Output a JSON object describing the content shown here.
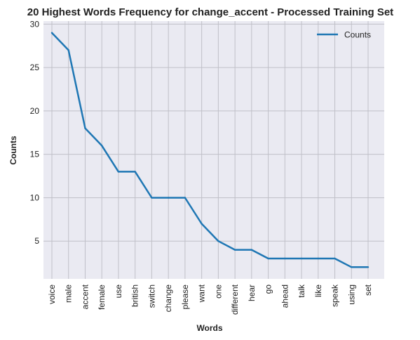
{
  "chart_data": {
    "type": "line",
    "title": "20 Highest Words Frequency for change_accent - Processed Training Set",
    "xlabel": "Words",
    "ylabel": "Counts",
    "categories": [
      "voice",
      "male",
      "accent",
      "female",
      "use",
      "british",
      "switch",
      "change",
      "please",
      "want",
      "one",
      "different",
      "hear",
      "go",
      "ahead",
      "talk",
      "like",
      "speak",
      "using",
      "set"
    ],
    "series": [
      {
        "name": "Counts",
        "values": [
          29,
          27,
          18,
          16,
          13,
          13,
          10,
          10,
          10,
          7,
          5,
          4,
          4,
          3,
          3,
          3,
          3,
          3,
          2,
          2
        ]
      }
    ],
    "ylim": [
      0.65,
      30.35
    ],
    "yticks": [
      5,
      10,
      15,
      20,
      25,
      30
    ],
    "grid": true,
    "legend_position": "top-right",
    "colors": {
      "line": "#1f77b4",
      "plot_background": "#eaeaf2",
      "grid": "#c0c0c8"
    }
  }
}
